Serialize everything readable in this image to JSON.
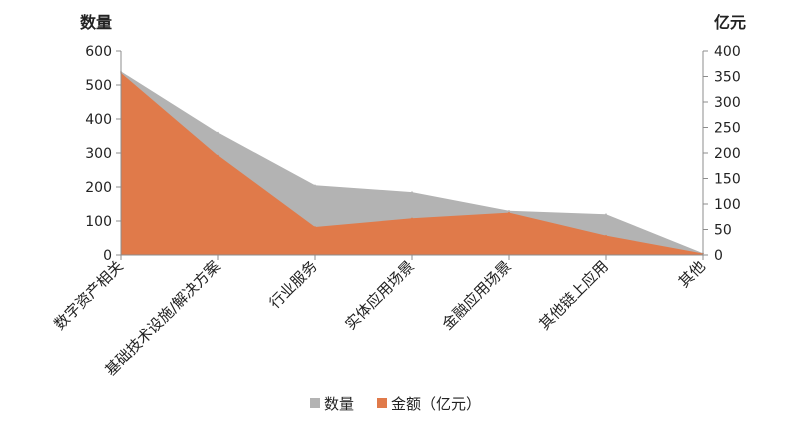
{
  "chart_data": {
    "type": "area",
    "categories": [
      "数字资产相关",
      "基础技术设施/解决方案",
      "行业服务",
      "实体应用场景",
      "金融应用场景",
      "其他链上应用",
      "其他"
    ],
    "series": [
      {
        "name": "数量",
        "axis": "left",
        "color": "#b3b3b3",
        "values": [
          540,
          360,
          205,
          185,
          130,
          120,
          5
        ]
      },
      {
        "name": "金额（亿元）",
        "axis": "right",
        "color": "#e07a4a",
        "values": [
          357,
          195,
          55,
          72,
          83,
          38,
          3
        ]
      }
    ],
    "y_left": {
      "unit": "数量",
      "min": 0,
      "max": 600,
      "ticks": [
        "0",
        "100",
        "200",
        "300",
        "400",
        "500",
        "600"
      ]
    },
    "y_right": {
      "unit": "亿元",
      "min": 0,
      "max": 400,
      "ticks": [
        "0",
        "50",
        "100",
        "150",
        "200",
        "250",
        "300",
        "350",
        "400"
      ]
    },
    "legend": {
      "position": "bottom",
      "items": [
        "数量",
        "金额（亿元）"
      ]
    },
    "grid": false
  }
}
